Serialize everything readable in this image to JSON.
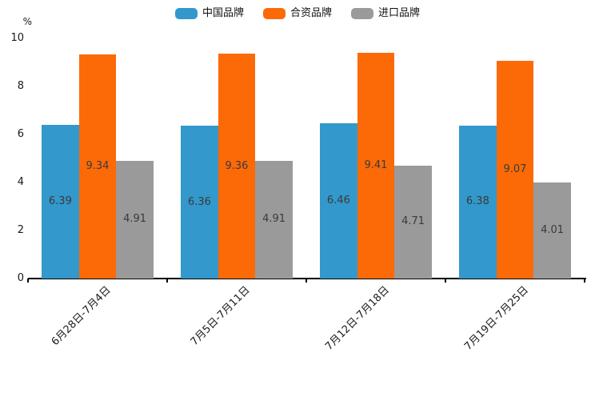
{
  "chart_data": {
    "type": "bar",
    "title": "",
    "ylabel": "%",
    "ylim": [
      0,
      10
    ],
    "yticks": [
      0,
      2,
      4,
      6,
      8,
      10
    ],
    "grid": false,
    "legend_position": "top",
    "value_labels": true,
    "categories": [
      "6月28日-7月4日",
      "7月5日-7月11日",
      "7月12日-7月18日",
      "7月19日-7月25日"
    ],
    "series": [
      {
        "name": "中国品牌",
        "color": "#3398cb",
        "values": [
          6.39,
          6.36,
          6.46,
          6.38
        ]
      },
      {
        "name": "合资品牌",
        "color": "#fb6a07",
        "values": [
          9.34,
          9.36,
          9.41,
          9.07
        ]
      },
      {
        "name": "进口品牌",
        "color": "#9a9a9a",
        "values": [
          4.91,
          4.91,
          4.71,
          4.01
        ]
      }
    ],
    "value_label_color": "#3a3a3a",
    "axis_color": "#000000",
    "tick_label_color": "#1a1a1a"
  }
}
